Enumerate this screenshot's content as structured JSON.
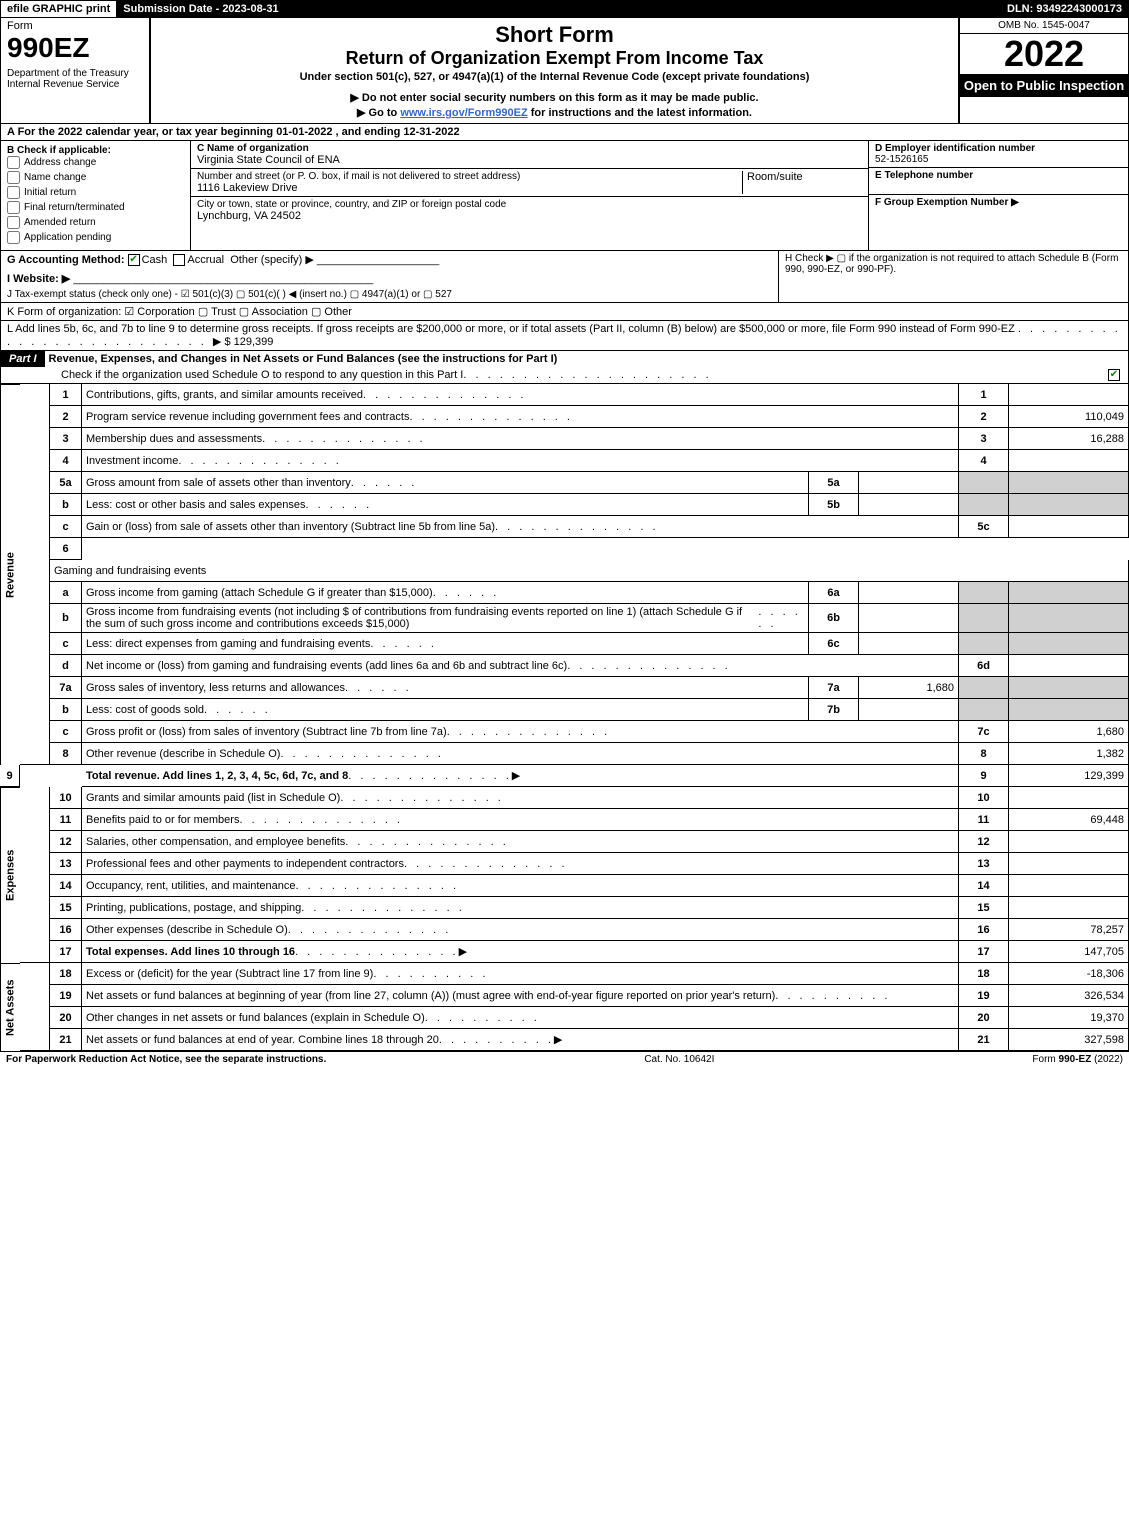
{
  "topbar": {
    "efile": "efile GRAPHIC print",
    "submission_label": "Submission Date - 2023-08-31",
    "dln_label": "DLN: 93492243000173"
  },
  "header": {
    "form_word": "Form",
    "form_number": "990EZ",
    "dept": "Department of the Treasury\nInternal Revenue Service",
    "title1": "Short Form",
    "title2": "Return of Organization Exempt From Income Tax",
    "sub1": "Under section 501(c), 527, or 4947(a)(1) of the Internal Revenue Code (except private foundations)",
    "sub2": "▶ Do not enter social security numbers on this form as it may be made public.",
    "sub3_pre": "▶ Go to ",
    "sub3_link": "www.irs.gov/Form990EZ",
    "sub3_post": " for instructions and the latest information.",
    "omb": "OMB No. 1545-0047",
    "year": "2022",
    "open": "Open to Public Inspection"
  },
  "lineA": "A  For the 2022 calendar year, or tax year beginning 01-01-2022 , and ending 12-31-2022",
  "sectionB": {
    "label": "B  Check if applicable:",
    "opts": [
      "Address change",
      "Name change",
      "Initial return",
      "Final return/terminated",
      "Amended return",
      "Application pending"
    ]
  },
  "sectionC": {
    "name_label": "C Name of organization",
    "name": "Virginia State Council of ENA",
    "street_label": "Number and street (or P. O. box, if mail is not delivered to street address)",
    "street": "1116 Lakeview Drive",
    "room_label": "Room/suite",
    "city_label": "City or town, state or province, country, and ZIP or foreign postal code",
    "city": "Lynchburg, VA  24502"
  },
  "sectionDE": {
    "d_label": "D Employer identification number",
    "d_val": "52-1526165",
    "e_label": "E Telephone number",
    "f_label": "F Group Exemption Number   ▶"
  },
  "lineG": {
    "label": "G Accounting Method:",
    "opts": [
      "Cash",
      "Accrual",
      "Other (specify) ▶"
    ],
    "checked": 0
  },
  "lineH": "H  Check ▶  ▢  if the organization is not required to attach Schedule B (Form 990, 990-EZ, or 990-PF).",
  "lineI": "I Website: ▶",
  "lineJ": "J Tax-exempt status (check only one) -  ☑ 501(c)(3)  ▢ 501(c)(  ) ◀ (insert no.)  ▢ 4947(a)(1) or  ▢ 527",
  "lineK": "K Form of organization:   ☑ Corporation   ▢ Trust   ▢ Association   ▢ Other",
  "lineL": {
    "text": "L Add lines 5b, 6c, and 7b to line 9 to determine gross receipts. If gross receipts are $200,000 or more, or if total assets (Part II, column (B) below) are $500,000 or more, file Form 990 instead of Form 990-EZ",
    "arrow": "▶ $",
    "amount": "129,399"
  },
  "partI": {
    "label": "Part I",
    "title": "Revenue, Expenses, and Changes in Net Assets or Fund Balances (see the instructions for Part I)",
    "check_line": "Check if the organization used Schedule O to respond to any question in this Part I"
  },
  "sections": {
    "revenue_label": "Revenue",
    "expenses_label": "Expenses",
    "netassets_label": "Net Assets"
  },
  "rows": [
    {
      "n": "1",
      "d": "Contributions, gifts, grants, and similar amounts received",
      "r": "1",
      "v": ""
    },
    {
      "n": "2",
      "d": "Program service revenue including government fees and contracts",
      "r": "2",
      "v": "110,049"
    },
    {
      "n": "3",
      "d": "Membership dues and assessments",
      "r": "3",
      "v": "16,288"
    },
    {
      "n": "4",
      "d": "Investment income",
      "r": "4",
      "v": ""
    },
    {
      "n": "5a",
      "d": "Gross amount from sale of assets other than inventory",
      "mid": "5a",
      "midv": ""
    },
    {
      "n": "b",
      "d": "Less: cost or other basis and sales expenses",
      "mid": "5b",
      "midv": ""
    },
    {
      "n": "c",
      "d": "Gain or (loss) from sale of assets other than inventory (Subtract line 5b from line 5a)",
      "r": "5c",
      "v": ""
    },
    {
      "n": "6",
      "d": "Gaming and fundraising events",
      "full": true
    },
    {
      "n": "a",
      "d": "Gross income from gaming (attach Schedule G if greater than $15,000)",
      "mid": "6a",
      "midv": ""
    },
    {
      "n": "b",
      "d": "Gross income from fundraising events (not including $                      of contributions from fundraising events reported on line 1) (attach Schedule G if the sum of such gross income and contributions exceeds $15,000)",
      "mid": "6b",
      "midv": ""
    },
    {
      "n": "c",
      "d": "Less: direct expenses from gaming and fundraising events",
      "mid": "6c",
      "midv": ""
    },
    {
      "n": "d",
      "d": "Net income or (loss) from gaming and fundraising events (add lines 6a and 6b and subtract line 6c)",
      "r": "6d",
      "v": ""
    },
    {
      "n": "7a",
      "d": "Gross sales of inventory, less returns and allowances",
      "mid": "7a",
      "midv": "1,680"
    },
    {
      "n": "b",
      "d": "Less: cost of goods sold",
      "mid": "7b",
      "midv": ""
    },
    {
      "n": "c",
      "d": "Gross profit or (loss) from sales of inventory (Subtract line 7b from line 7a)",
      "r": "7c",
      "v": "1,680"
    },
    {
      "n": "8",
      "d": "Other revenue (describe in Schedule O)",
      "r": "8",
      "v": "1,382"
    },
    {
      "n": "9",
      "d": "Total revenue. Add lines 1, 2, 3, 4, 5c, 6d, 7c, and 8",
      "r": "9",
      "v": "129,399",
      "bold": true,
      "arrow": true
    }
  ],
  "expRows": [
    {
      "n": "10",
      "d": "Grants and similar amounts paid (list in Schedule O)",
      "r": "10",
      "v": ""
    },
    {
      "n": "11",
      "d": "Benefits paid to or for members",
      "r": "11",
      "v": "69,448"
    },
    {
      "n": "12",
      "d": "Salaries, other compensation, and employee benefits",
      "r": "12",
      "v": ""
    },
    {
      "n": "13",
      "d": "Professional fees and other payments to independent contractors",
      "r": "13",
      "v": ""
    },
    {
      "n": "14",
      "d": "Occupancy, rent, utilities, and maintenance",
      "r": "14",
      "v": ""
    },
    {
      "n": "15",
      "d": "Printing, publications, postage, and shipping",
      "r": "15",
      "v": ""
    },
    {
      "n": "16",
      "d": "Other expenses (describe in Schedule O)",
      "r": "16",
      "v": "78,257"
    },
    {
      "n": "17",
      "d": "Total expenses. Add lines 10 through 16",
      "r": "17",
      "v": "147,705",
      "bold": true,
      "arrow": true
    }
  ],
  "naRows": [
    {
      "n": "18",
      "d": "Excess or (deficit) for the year (Subtract line 17 from line 9)",
      "r": "18",
      "v": "-18,306"
    },
    {
      "n": "19",
      "d": "Net assets or fund balances at beginning of year (from line 27, column (A)) (must agree with end-of-year figure reported on prior year's return)",
      "r": "19",
      "v": "326,534"
    },
    {
      "n": "20",
      "d": "Other changes in net assets or fund balances (explain in Schedule O)",
      "r": "20",
      "v": "19,370"
    },
    {
      "n": "21",
      "d": "Net assets or fund balances at end of year. Combine lines 18 through 20",
      "r": "21",
      "v": "327,598",
      "arrow": true
    }
  ],
  "footer": {
    "left": "For Paperwork Reduction Act Notice, see the separate instructions.",
    "mid": "Cat. No. 10642I",
    "right": "Form 990-EZ (2022)"
  },
  "colors": {
    "black": "#000000",
    "white": "#ffffff",
    "gray": "#d0d0d0",
    "link": "#3366cc",
    "check_green": "#1a7d1a"
  }
}
